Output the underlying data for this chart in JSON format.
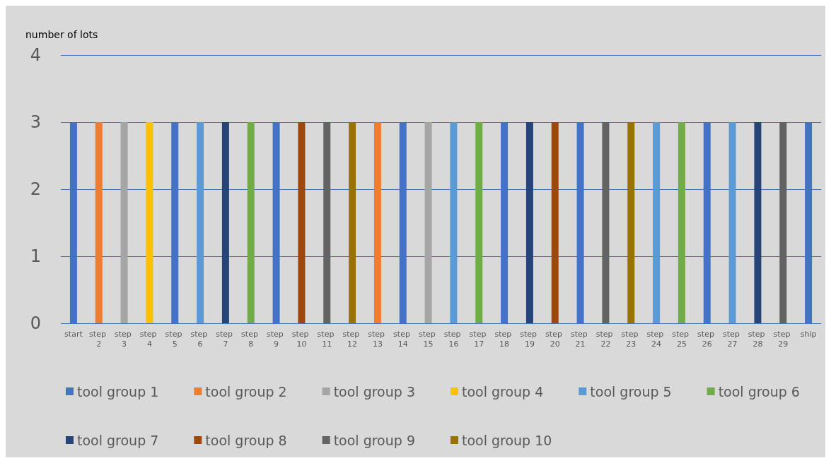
{
  "chart_data": {
    "type": "bar",
    "ylabel": "number of lots",
    "stacked": true,
    "categories": [
      "start",
      "step 2",
      "step 3",
      "step 4",
      "step 5",
      "step 6",
      "step 7",
      "step 8",
      "step 9",
      "step 10",
      "step 11",
      "step 12",
      "step 13",
      "step 14",
      "step 15",
      "step 16",
      "step 17",
      "step 18",
      "step 19",
      "step 20",
      "step 21",
      "step 22",
      "step 23",
      "step 24",
      "step 25",
      "step 26",
      "step 27",
      "step 28",
      "step 29",
      "ship"
    ],
    "series": [
      {
        "name": "tool group 1",
        "color": "#4472c4",
        "values": [
          3,
          null,
          null,
          null,
          3,
          null,
          null,
          null,
          3,
          null,
          null,
          null,
          null,
          3,
          null,
          null,
          null,
          3,
          null,
          null,
          3,
          null,
          null,
          null,
          null,
          3,
          null,
          null,
          null,
          3
        ]
      },
      {
        "name": "tool group 2",
        "color": "#ed7d31",
        "values": [
          null,
          3,
          null,
          null,
          null,
          null,
          null,
          null,
          null,
          null,
          null,
          null,
          3,
          null,
          null,
          null,
          null,
          null,
          null,
          null,
          null,
          null,
          null,
          null,
          null,
          null,
          null,
          null,
          null,
          null
        ]
      },
      {
        "name": "tool group 3",
        "color": "#a5a5a5",
        "values": [
          null,
          null,
          3,
          null,
          null,
          null,
          null,
          null,
          null,
          null,
          null,
          null,
          null,
          null,
          3,
          null,
          null,
          null,
          null,
          null,
          null,
          null,
          null,
          null,
          null,
          null,
          null,
          null,
          null,
          null
        ]
      },
      {
        "name": "tool group 4",
        "color": "#ffc000",
        "values": [
          null,
          null,
          null,
          3,
          null,
          null,
          null,
          null,
          null,
          null,
          null,
          null,
          null,
          null,
          null,
          null,
          null,
          null,
          null,
          null,
          null,
          null,
          null,
          null,
          null,
          null,
          null,
          null,
          null,
          null
        ]
      },
      {
        "name": "tool group 5",
        "color": "#5b9bd5",
        "values": [
          null,
          null,
          null,
          null,
          null,
          3,
          null,
          null,
          null,
          null,
          null,
          null,
          null,
          null,
          null,
          3,
          null,
          null,
          null,
          null,
          null,
          null,
          null,
          3,
          null,
          null,
          3,
          null,
          null,
          null
        ]
      },
      {
        "name": "tool group 6",
        "color": "#70ad47",
        "values": [
          null,
          null,
          null,
          null,
          null,
          null,
          null,
          3,
          null,
          null,
          null,
          null,
          null,
          null,
          null,
          null,
          3,
          null,
          null,
          null,
          null,
          null,
          null,
          null,
          3,
          null,
          null,
          null,
          null,
          null
        ]
      },
      {
        "name": "tool group 7",
        "color": "#264478",
        "values": [
          null,
          null,
          null,
          null,
          null,
          null,
          3,
          null,
          null,
          null,
          null,
          null,
          null,
          null,
          null,
          null,
          null,
          null,
          3,
          null,
          null,
          null,
          null,
          null,
          null,
          null,
          null,
          3,
          null,
          null
        ]
      },
      {
        "name": "tool group 8",
        "color": "#9e480e",
        "values": [
          null,
          null,
          null,
          null,
          null,
          null,
          null,
          null,
          null,
          3,
          null,
          null,
          null,
          null,
          null,
          null,
          null,
          null,
          null,
          3,
          null,
          null,
          null,
          null,
          null,
          null,
          null,
          null,
          null,
          null
        ]
      },
      {
        "name": "tool group 9",
        "color": "#636363",
        "values": [
          null,
          null,
          null,
          null,
          null,
          null,
          null,
          null,
          null,
          null,
          3,
          null,
          null,
          null,
          null,
          null,
          null,
          null,
          null,
          null,
          null,
          3,
          null,
          null,
          null,
          null,
          null,
          null,
          3,
          null
        ]
      },
      {
        "name": "tool group 10",
        "color": "#997300",
        "values": [
          null,
          null,
          null,
          null,
          null,
          null,
          null,
          null,
          null,
          null,
          null,
          3,
          null,
          null,
          null,
          null,
          null,
          null,
          null,
          null,
          null,
          null,
          3,
          null,
          null,
          null,
          null,
          null,
          null,
          null
        ]
      }
    ],
    "ylim": [
      0,
      4
    ],
    "yticks": [
      0,
      1,
      2,
      3,
      4
    ],
    "grid": "y",
    "legend": "bottom"
  }
}
